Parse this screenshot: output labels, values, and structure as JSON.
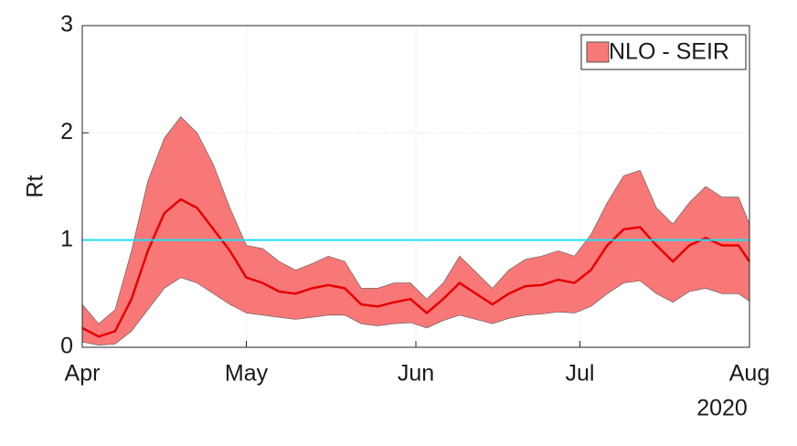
{
  "chart_data": {
    "type": "band-line",
    "ylabel": "Rt",
    "x": [
      0,
      3,
      6,
      9,
      12,
      15,
      18,
      21,
      24,
      27,
      30,
      33,
      36,
      39,
      42,
      45,
      48,
      51,
      54,
      57,
      60,
      63,
      66,
      69,
      72,
      75,
      78,
      81,
      84,
      87,
      90,
      93,
      96,
      99,
      102,
      105,
      108,
      111,
      114,
      117,
      120,
      122
    ],
    "xlim": [
      0,
      122
    ],
    "xticks": [
      {
        "value": 0,
        "label": "Apr"
      },
      {
        "value": 30,
        "label": "May"
      },
      {
        "value": 61,
        "label": "Jun"
      },
      {
        "value": 91,
        "label": "Jul"
      },
      {
        "value": 122,
        "label": "Aug"
      }
    ],
    "xnote": "2020",
    "ylim": [
      0,
      3
    ],
    "yticks": [
      0,
      1,
      2,
      3
    ],
    "grid": true,
    "legend": "top-right",
    "series": [
      {
        "name": "NLO - SEIR",
        "color": "#e60000",
        "band_color": "#f87878",
        "values": [
          0.18,
          0.1,
          0.15,
          0.45,
          0.9,
          1.25,
          1.38,
          1.3,
          1.1,
          0.9,
          0.65,
          0.6,
          0.52,
          0.5,
          0.55,
          0.58,
          0.55,
          0.4,
          0.38,
          0.42,
          0.45,
          0.32,
          0.45,
          0.6,
          0.5,
          0.4,
          0.5,
          0.57,
          0.58,
          0.63,
          0.6,
          0.72,
          0.95,
          1.1,
          1.12,
          0.95,
          0.8,
          0.95,
          1.02,
          0.95,
          0.95,
          0.8
        ],
        "lower": [
          0.05,
          0.02,
          0.03,
          0.15,
          0.35,
          0.55,
          0.65,
          0.6,
          0.5,
          0.4,
          0.32,
          0.3,
          0.28,
          0.26,
          0.28,
          0.3,
          0.3,
          0.22,
          0.2,
          0.22,
          0.23,
          0.18,
          0.25,
          0.3,
          0.26,
          0.22,
          0.27,
          0.3,
          0.31,
          0.33,
          0.32,
          0.38,
          0.5,
          0.6,
          0.62,
          0.5,
          0.42,
          0.52,
          0.55,
          0.5,
          0.5,
          0.43
        ],
        "upper": [
          0.4,
          0.22,
          0.35,
          0.9,
          1.55,
          1.95,
          2.15,
          2.0,
          1.7,
          1.3,
          0.95,
          0.92,
          0.8,
          0.72,
          0.78,
          0.85,
          0.8,
          0.55,
          0.55,
          0.6,
          0.6,
          0.45,
          0.6,
          0.85,
          0.7,
          0.55,
          0.72,
          0.82,
          0.85,
          0.9,
          0.85,
          1.05,
          1.35,
          1.6,
          1.65,
          1.3,
          1.15,
          1.35,
          1.5,
          1.4,
          1.4,
          1.15
        ]
      }
    ],
    "hline": {
      "value": 1,
      "color": "#1ee0ee"
    }
  }
}
